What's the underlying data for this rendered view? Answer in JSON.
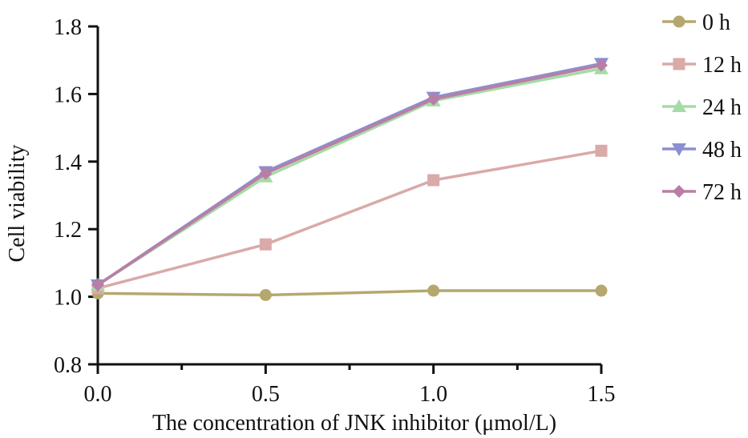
{
  "chart_data": {
    "type": "line",
    "xlabel": "The concentration of JNK inhibitor (μmol/L)",
    "ylabel": "Cell viability",
    "x": [
      0.0,
      0.5,
      1.0,
      1.5
    ],
    "xlim": [
      0.0,
      1.5
    ],
    "ylim": [
      0.8,
      1.8
    ],
    "x_ticks": [
      "0.0",
      "0.5",
      "1.0",
      "1.5"
    ],
    "y_ticks": [
      "0.8",
      "1.0",
      "1.2",
      "1.4",
      "1.6",
      "1.8"
    ],
    "grid": false,
    "legend_position": "right",
    "series": [
      {
        "name": "0 h",
        "values": [
          1.01,
          1.005,
          1.018,
          1.018
        ],
        "color": "#b5a86f",
        "marker": "circle"
      },
      {
        "name": "12 h",
        "values": [
          1.025,
          1.155,
          1.345,
          1.432
        ],
        "color": "#d9aaa8",
        "marker": "square"
      },
      {
        "name": "24 h",
        "values": [
          1.035,
          1.355,
          1.58,
          1.675
        ],
        "color": "#a6dba6",
        "marker": "triangle-up"
      },
      {
        "name": "48 h",
        "values": [
          1.035,
          1.37,
          1.59,
          1.69
        ],
        "color": "#8b8fce",
        "marker": "triangle-down"
      },
      {
        "name": "72 h",
        "values": [
          1.035,
          1.365,
          1.585,
          1.685
        ],
        "color": "#b97ea6",
        "marker": "diamond"
      }
    ]
  }
}
